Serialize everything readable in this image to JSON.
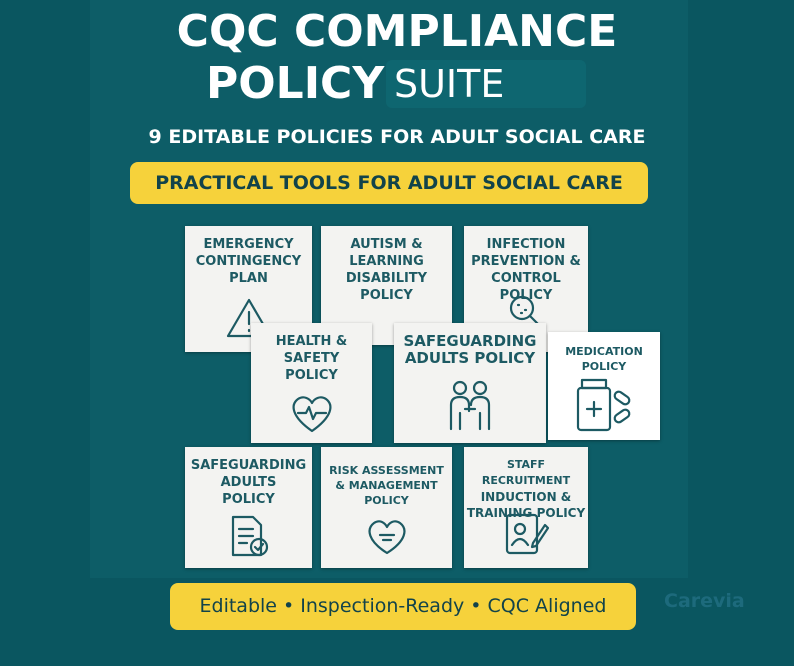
{
  "header": {
    "title_line1": "CQC COMPLIANCE",
    "title_line2": "POLICY",
    "title_line3": "SUITE",
    "subtitle": "9 EDITABLE POLICIES FOR ADULT SOCIAL CARE",
    "banner": "PRACTICAL TOOLS FOR ADULT SOCIAL CARE"
  },
  "cards": [
    {
      "lines": [
        "EMERGENCY",
        "CONTINGENCY",
        "PLAN"
      ]
    },
    {
      "lines": [
        "AUTISM &",
        "LEARNING",
        "DISABILITY",
        "POLICY"
      ]
    },
    {
      "lines": [
        "INFECTION",
        "PREVENTION &",
        "CONTROL POLICY"
      ]
    },
    {
      "lines": [
        "HEALTH &",
        "SAFETY",
        "POLICY"
      ]
    },
    {
      "lines": [
        "SAFEGUARDING",
        "ADULTS POLICY"
      ]
    },
    {
      "lines": [
        "MEDICATION",
        "POLICY"
      ]
    },
    {
      "lines": [
        "SAFEGUARDING",
        "ADULTS",
        "POLICY"
      ]
    },
    {
      "lines": [
        "RISK ASSESSMENT",
        "& MANAGEMENT",
        "POLICY"
      ]
    },
    {
      "lines": [
        "STAFF RECRUITMENT",
        "INDUCTION &",
        "TRAINING POLICY"
      ]
    }
  ],
  "footer": {
    "tagline": "Editable • Inspection-Ready • CQC Aligned",
    "logo": "Carevia"
  }
}
